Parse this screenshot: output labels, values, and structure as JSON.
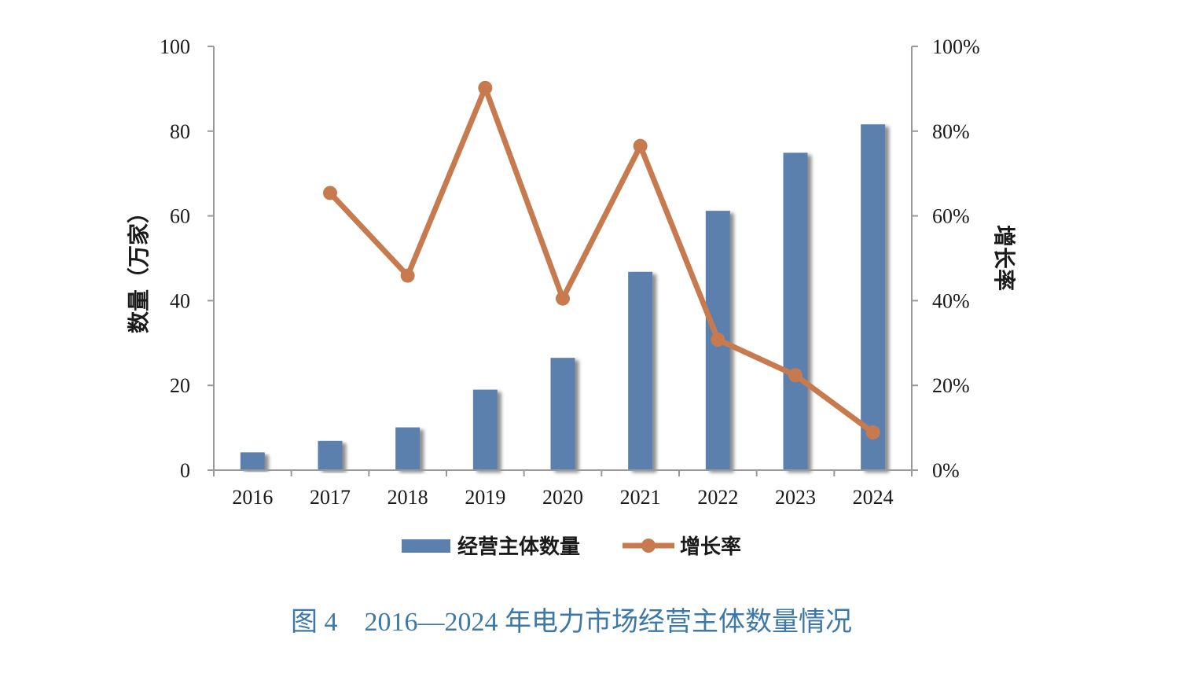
{
  "chart_data": {
    "type": "bar",
    "categories": [
      "2016",
      "2017",
      "2018",
      "2019",
      "2020",
      "2021",
      "2022",
      "2023",
      "2024"
    ],
    "series": [
      {
        "name": "经营主体数量",
        "type": "bar",
        "axis": "left",
        "color": "#5b80ad",
        "values": [
          4.2,
          6.9,
          10.1,
          19.0,
          26.5,
          46.8,
          61.2,
          74.9,
          81.6
        ]
      },
      {
        "name": "增长率",
        "type": "line",
        "axis": "right",
        "color": "#c87a4f",
        "values": [
          null,
          0.654,
          0.459,
          0.902,
          0.405,
          0.765,
          0.308,
          0.224,
          0.089
        ]
      }
    ],
    "ylabel": "数量（万家）",
    "y2label": "增长率",
    "ylim": [
      0,
      100
    ],
    "y2lim": [
      0,
      1
    ],
    "yticks": [
      "0",
      "20",
      "40",
      "60",
      "80",
      "100"
    ],
    "y2ticks": [
      "0%",
      "20%",
      "40%",
      "60%",
      "80%",
      "100%"
    ],
    "grid": false,
    "legend_position": "bottom"
  },
  "caption": "图 4　2016—2024 年电力市场经营主体数量情况"
}
